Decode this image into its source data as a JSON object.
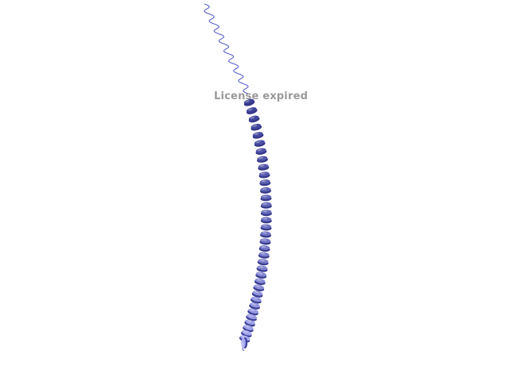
{
  "watermark": {
    "text": "License expired"
  },
  "structure": {
    "kind": "protein-helix-cartoon",
    "coil_color": "#5b62c9",
    "helix_color_dark": "#3d4196",
    "helix_color_light": "#a9acf2"
  }
}
